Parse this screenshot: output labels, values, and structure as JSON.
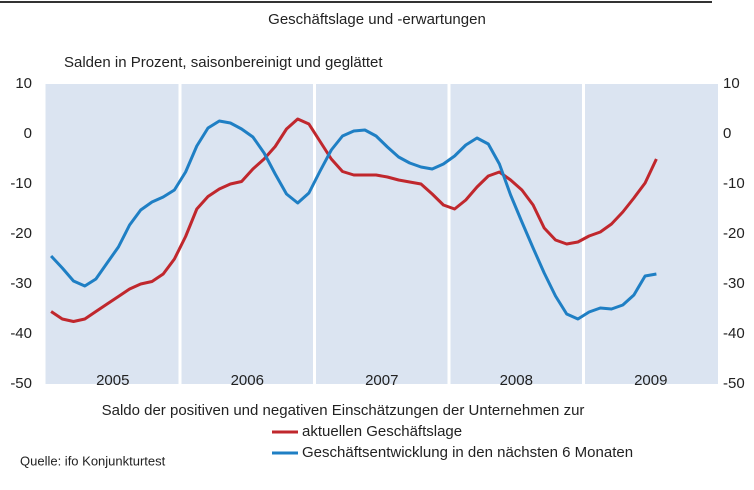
{
  "chart_data": {
    "type": "line",
    "title": "Geschäftslage und -erwartungen",
    "subtitle": "Salden in Prozent, saisonbereinigt und geglättet",
    "note": "Saldo der positiven und negativen Einschätzungen der Unternehmen zur",
    "source": "Quelle: ifo Konjunkturtest",
    "x": [
      2005.042,
      2005.125,
      2005.208,
      2005.292,
      2005.375,
      2005.458,
      2005.542,
      2005.625,
      2005.708,
      2005.792,
      2005.875,
      2005.958,
      2006.042,
      2006.125,
      2006.208,
      2006.292,
      2006.375,
      2006.458,
      2006.542,
      2006.625,
      2006.708,
      2006.792,
      2006.875,
      2006.958,
      2007.042,
      2007.125,
      2007.208,
      2007.292,
      2007.375,
      2007.458,
      2007.542,
      2007.625,
      2007.708,
      2007.792,
      2007.875,
      2007.958,
      2008.042,
      2008.125,
      2008.208,
      2008.292,
      2008.375,
      2008.458,
      2008.542,
      2008.625,
      2008.708,
      2008.792,
      2008.875,
      2008.958,
      2009.042,
      2009.125,
      2009.208,
      2009.292,
      2009.375,
      2009.458,
      2009.542
    ],
    "series": [
      {
        "name": "aktuellen Geschäftslage",
        "color": "#c0272d",
        "values": [
          -35.5,
          -37,
          -37.5,
          -37,
          -35.5,
          -34,
          -32.5,
          -31,
          -30,
          -29.5,
          -28,
          -25,
          -20.5,
          -15,
          -12.5,
          -11,
          -10,
          -9.5,
          -7,
          -5,
          -2.5,
          1,
          3,
          2,
          -1.5,
          -5,
          -7.5,
          -8.2,
          -8.2,
          -8.2,
          -8.6,
          -9.2,
          -9.6,
          -10,
          -12,
          -14.2,
          -15,
          -13.2,
          -10.6,
          -8.4,
          -7.6,
          -9.2,
          -11.2,
          -14.2,
          -18.8,
          -21.2,
          -22,
          -21.6,
          -20.4,
          -19.6,
          -18,
          -15.6,
          -12.8,
          -9.8,
          -5
        ]
      },
      {
        "name": "Geschäftsentwicklung in den nächsten 6 Monaten",
        "color": "#1f7fc4",
        "values": [
          -24.4,
          -26.8,
          -29.4,
          -30.4,
          -29,
          -25.8,
          -22.6,
          -18.2,
          -15.2,
          -13.6,
          -12.6,
          -11.2,
          -7.6,
          -2.4,
          1.2,
          2.6,
          2.2,
          1,
          -0.6,
          -3.8,
          -8,
          -12,
          -13.8,
          -11.8,
          -7.4,
          -3.2,
          -0.4,
          0.6,
          0.8,
          -0.4,
          -2.6,
          -4.6,
          -5.8,
          -6.6,
          -7,
          -6,
          -4.4,
          -2.2,
          -0.8,
          -2,
          -6,
          -12.2,
          -17.6,
          -22.8,
          -27.8,
          -32.4,
          -36,
          -37,
          -35.6,
          -34.8,
          -35,
          -34.2,
          -32.2,
          -28.4,
          -28
        ]
      }
    ],
    "xlim": [
      2005,
      2010
    ],
    "xticks": [
      2005,
      2006,
      2007,
      2008,
      2009
    ],
    "ylim": [
      -50,
      10
    ],
    "yticks": [
      -50,
      -40,
      -30,
      -20,
      -10,
      0,
      10
    ],
    "y2lim": [
      -50,
      10
    ],
    "y2ticks": [
      -50,
      -40,
      -30,
      -20,
      -10,
      0,
      10
    ],
    "grid": true
  }
}
